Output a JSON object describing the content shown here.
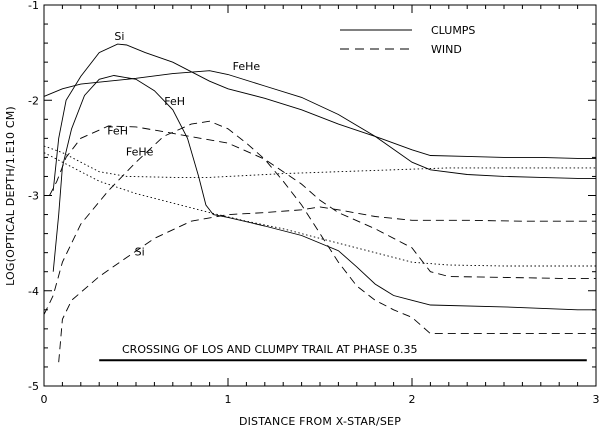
{
  "chart_data": {
    "type": "line",
    "title": "",
    "xlabel": "DISTANCE FROM X-STAR/SEP",
    "ylabel": "LOG(OPTICAL DEPTH/1.E10 CM)",
    "xlim": [
      0,
      3
    ],
    "ylim": [
      -5,
      -1
    ],
    "x_ticks": [
      "0",
      "1",
      "2",
      "3"
    ],
    "y_ticks": [
      "-1",
      "-2",
      "-3",
      "-4",
      "-5"
    ],
    "grid": false,
    "legend": [
      {
        "label": "CLUMPS",
        "style": "solid"
      },
      {
        "label": "WIND",
        "style": "dashed"
      }
    ],
    "annotation": "CROSSING OF LOS AND CLUMPY TRAIL AT PHASE 0.35",
    "annotation_bar": {
      "x0": 0.3,
      "x1": 2.95,
      "y": -4.73
    },
    "curve_labels": [
      {
        "text": "Si",
        "x": 0.41,
        "y": -1.37
      },
      {
        "text": "FeHe",
        "x": 1.1,
        "y": -1.68
      },
      {
        "text": "FeH",
        "x": 0.71,
        "y": -2.05
      },
      {
        "text": "FeH",
        "x": 0.4,
        "y": -2.36
      },
      {
        "text": "FeHe",
        "x": 0.52,
        "y": -2.58
      },
      {
        "text": "Si",
        "x": 0.52,
        "y": -3.63
      }
    ],
    "series": [
      {
        "label": "Si",
        "style": "solid",
        "points": [
          [
            0.05,
            -2.95
          ],
          [
            0.08,
            -2.4
          ],
          [
            0.12,
            -2.0
          ],
          [
            0.2,
            -1.75
          ],
          [
            0.3,
            -1.5
          ],
          [
            0.4,
            -1.41
          ],
          [
            0.45,
            -1.42
          ],
          [
            0.55,
            -1.5
          ],
          [
            0.7,
            -1.6
          ],
          [
            0.9,
            -1.8
          ],
          [
            1.0,
            -1.88
          ],
          [
            1.2,
            -1.98
          ],
          [
            1.4,
            -2.1
          ],
          [
            1.6,
            -2.25
          ],
          [
            1.8,
            -2.38
          ],
          [
            2.0,
            -2.52
          ],
          [
            2.1,
            -2.58
          ],
          [
            2.3,
            -2.59
          ],
          [
            2.5,
            -2.6
          ],
          [
            2.7,
            -2.6
          ],
          [
            2.9,
            -2.61
          ],
          [
            3.0,
            -2.61
          ]
        ]
      },
      {
        "label": "FeHe",
        "style": "solid",
        "points": [
          [
            0.0,
            -1.96
          ],
          [
            0.1,
            -1.88
          ],
          [
            0.2,
            -1.83
          ],
          [
            0.35,
            -1.8
          ],
          [
            0.5,
            -1.77
          ],
          [
            0.7,
            -1.72
          ],
          [
            0.9,
            -1.69
          ],
          [
            1.0,
            -1.73
          ],
          [
            1.2,
            -1.85
          ],
          [
            1.4,
            -1.97
          ],
          [
            1.6,
            -2.15
          ],
          [
            1.8,
            -2.38
          ],
          [
            2.0,
            -2.65
          ],
          [
            2.1,
            -2.73
          ],
          [
            2.3,
            -2.78
          ],
          [
            2.5,
            -2.8
          ],
          [
            2.7,
            -2.81
          ],
          [
            2.9,
            -2.82
          ],
          [
            3.0,
            -2.82
          ]
        ]
      },
      {
        "label": "FeH",
        "style": "solid",
        "points": [
          [
            0.05,
            -3.8
          ],
          [
            0.08,
            -3.2
          ],
          [
            0.1,
            -2.7
          ],
          [
            0.15,
            -2.3
          ],
          [
            0.22,
            -1.95
          ],
          [
            0.3,
            -1.78
          ],
          [
            0.38,
            -1.74
          ],
          [
            0.5,
            -1.78
          ],
          [
            0.6,
            -1.9
          ],
          [
            0.7,
            -2.1
          ],
          [
            0.78,
            -2.4
          ],
          [
            0.84,
            -2.8
          ],
          [
            0.88,
            -3.1
          ],
          [
            0.92,
            -3.2
          ],
          [
            1.0,
            -3.23
          ],
          [
            1.2,
            -3.32
          ],
          [
            1.4,
            -3.42
          ],
          [
            1.6,
            -3.58
          ],
          [
            1.7,
            -3.75
          ],
          [
            1.8,
            -3.93
          ],
          [
            1.9,
            -4.05
          ],
          [
            2.0,
            -4.1
          ],
          [
            2.1,
            -4.15
          ],
          [
            2.5,
            -4.17
          ],
          [
            2.9,
            -4.2
          ],
          [
            3.0,
            -4.2
          ]
        ]
      },
      {
        "label": "FeH",
        "style": "dashed",
        "points": [
          [
            0.03,
            -3.0
          ],
          [
            0.07,
            -2.85
          ],
          [
            0.12,
            -2.6
          ],
          [
            0.2,
            -2.4
          ],
          [
            0.35,
            -2.27
          ],
          [
            0.5,
            -2.28
          ],
          [
            0.65,
            -2.33
          ],
          [
            0.85,
            -2.4
          ],
          [
            1.0,
            -2.45
          ],
          [
            1.2,
            -2.62
          ],
          [
            1.4,
            -2.88
          ],
          [
            1.5,
            -3.05
          ],
          [
            1.6,
            -3.18
          ],
          [
            1.8,
            -3.35
          ],
          [
            2.0,
            -3.55
          ],
          [
            2.1,
            -3.8
          ],
          [
            2.2,
            -3.85
          ],
          [
            2.5,
            -3.86
          ],
          [
            2.8,
            -3.87
          ],
          [
            3.0,
            -3.87
          ]
        ]
      },
      {
        "label": "FeHe",
        "style": "dashed",
        "points": [
          [
            0.0,
            -4.25
          ],
          [
            0.05,
            -4.05
          ],
          [
            0.1,
            -3.7
          ],
          [
            0.2,
            -3.3
          ],
          [
            0.35,
            -2.95
          ],
          [
            0.5,
            -2.65
          ],
          [
            0.65,
            -2.38
          ],
          [
            0.8,
            -2.25
          ],
          [
            0.9,
            -2.22
          ],
          [
            1.0,
            -2.3
          ],
          [
            1.1,
            -2.45
          ],
          [
            1.2,
            -2.62
          ],
          [
            1.3,
            -2.85
          ],
          [
            1.4,
            -3.1
          ],
          [
            1.5,
            -3.4
          ],
          [
            1.6,
            -3.7
          ],
          [
            1.7,
            -3.95
          ],
          [
            1.8,
            -4.1
          ],
          [
            1.9,
            -4.2
          ],
          [
            2.0,
            -4.28
          ],
          [
            2.1,
            -4.45
          ],
          [
            2.2,
            -4.45
          ],
          [
            2.5,
            -4.45
          ],
          [
            3.0,
            -4.45
          ]
        ]
      },
      {
        "label": "Si",
        "style": "dashed",
        "points": [
          [
            0.08,
            -4.75
          ],
          [
            0.1,
            -4.3
          ],
          [
            0.15,
            -4.1
          ],
          [
            0.3,
            -3.85
          ],
          [
            0.45,
            -3.65
          ],
          [
            0.6,
            -3.45
          ],
          [
            0.8,
            -3.27
          ],
          [
            1.0,
            -3.2
          ],
          [
            1.2,
            -3.18
          ],
          [
            1.4,
            -3.15
          ],
          [
            1.5,
            -3.12
          ],
          [
            1.6,
            -3.15
          ],
          [
            1.8,
            -3.22
          ],
          [
            2.0,
            -3.26
          ],
          [
            2.3,
            -3.26
          ],
          [
            2.6,
            -3.27
          ],
          [
            3.0,
            -3.27
          ]
        ]
      },
      {
        "label": "",
        "style": "dotted",
        "points": [
          [
            0.0,
            -2.48
          ],
          [
            0.1,
            -2.55
          ],
          [
            0.2,
            -2.65
          ],
          [
            0.3,
            -2.75
          ],
          [
            0.45,
            -2.8
          ],
          [
            0.7,
            -2.81
          ],
          [
            0.9,
            -2.81
          ],
          [
            1.1,
            -2.79
          ],
          [
            1.3,
            -2.77
          ],
          [
            1.6,
            -2.75
          ],
          [
            1.9,
            -2.73
          ],
          [
            2.2,
            -2.71
          ],
          [
            2.6,
            -2.71
          ],
          [
            3.0,
            -2.71
          ]
        ]
      },
      {
        "label": "",
        "style": "dotted",
        "points": [
          [
            0.0,
            -2.55
          ],
          [
            0.15,
            -2.7
          ],
          [
            0.3,
            -2.85
          ],
          [
            0.5,
            -2.98
          ],
          [
            0.7,
            -3.08
          ],
          [
            0.9,
            -3.18
          ],
          [
            1.1,
            -3.27
          ],
          [
            1.3,
            -3.35
          ],
          [
            1.5,
            -3.45
          ],
          [
            1.7,
            -3.55
          ],
          [
            1.9,
            -3.65
          ],
          [
            2.0,
            -3.7
          ],
          [
            2.2,
            -3.73
          ],
          [
            2.5,
            -3.74
          ],
          [
            3.0,
            -3.74
          ]
        ]
      }
    ]
  }
}
